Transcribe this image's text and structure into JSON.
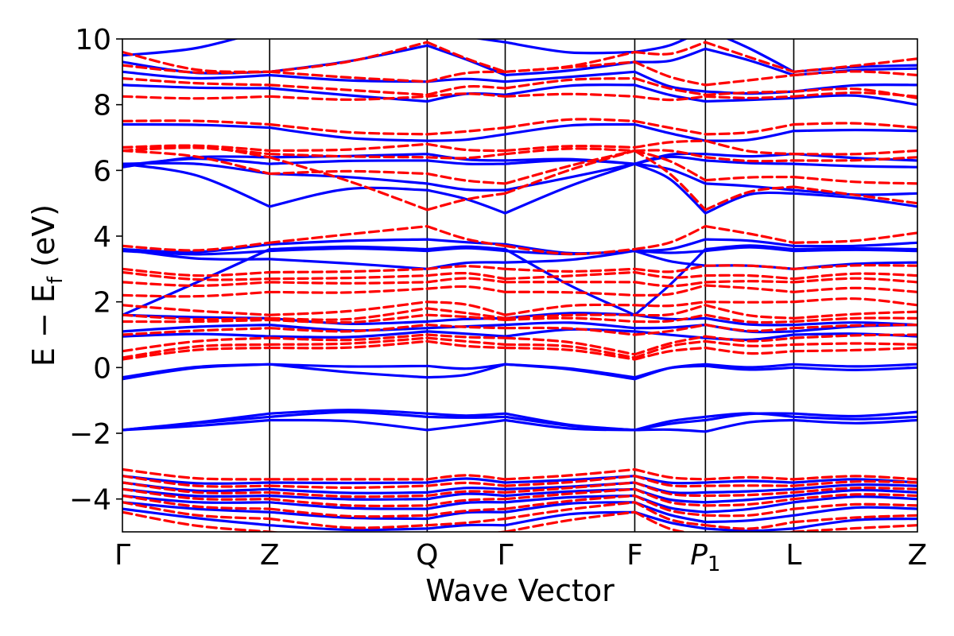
{
  "chart_data": {
    "type": "line",
    "title": "",
    "xlabel": "Wave Vector",
    "ylabel_parts": {
      "main": "E − E",
      "sub": "f",
      "unit": " (eV)"
    },
    "ylim": [
      -5,
      10
    ],
    "yticks": [
      {
        "value": -4,
        "label": "−4"
      },
      {
        "value": -2,
        "label": "−2"
      },
      {
        "value": 0,
        "label": "0"
      },
      {
        "value": 2,
        "label": "2"
      },
      {
        "value": 4,
        "label": "4"
      },
      {
        "value": 6,
        "label": "6"
      },
      {
        "value": 8,
        "label": "8"
      },
      {
        "value": 10,
        "label": "10"
      }
    ],
    "kpoints": [
      {
        "pos": 0.0,
        "label": "Γ"
      },
      {
        "pos": 1.0,
        "label": "Z"
      },
      {
        "pos": 2.07,
        "label": "Q"
      },
      {
        "pos": 2.6,
        "label": "Γ"
      },
      {
        "pos": 3.48,
        "label": "F"
      },
      {
        "pos": 3.96,
        "label": "P",
        "sub": "1"
      },
      {
        "pos": 4.56,
        "label": "L"
      },
      {
        "pos": 5.4,
        "label": "Z"
      }
    ],
    "grid": false,
    "colors": {
      "spin_a": "#0000ff",
      "spin_b": "#ff0000",
      "kline": "#000000"
    },
    "series": [
      {
        "color": "#0000ff",
        "style": "solid",
        "bands": [
          [
            -1.9,
            -1.5,
            -1.5,
            -1.5,
            -1.9,
            -1.5,
            -1.5,
            -1.5,
            -1.4
          ],
          [
            -1.9,
            -1.6,
            -1.9,
            -1.6,
            -1.9,
            -1.95,
            -1.6,
            -1.6,
            -1.6
          ],
          [
            -1.9,
            -1.4,
            -1.4,
            -1.4,
            -1.9,
            -1.6,
            -1.4,
            -1.35,
            -1.35
          ],
          [
            -0.3,
            0.1,
            -0.3,
            0.1,
            -0.3,
            0.05,
            0.0,
            0.0,
            0.0
          ],
          [
            -0.35,
            0.1,
            0.05,
            0.1,
            -0.35,
            0.1,
            0.1,
            0.1,
            0.1
          ],
          [
            0.95,
            0.95,
            1.1,
            0.95,
            1.1,
            0.9,
            1.0,
            0.95,
            1.0
          ],
          [
            1.1,
            1.3,
            1.2,
            1.3,
            1.2,
            1.3,
            1.1,
            1.3,
            1.3
          ],
          [
            1.6,
            1.5,
            1.4,
            1.5,
            1.6,
            1.5,
            1.3,
            1.3,
            1.3
          ],
          [
            1.6,
            3.6,
            3.6,
            3.6,
            1.6,
            3.6,
            3.6,
            3.6,
            3.6
          ],
          [
            3.55,
            3.55,
            3.55,
            3.55,
            3.55,
            3.55,
            3.55,
            3.55,
            3.55
          ],
          [
            3.6,
            3.75,
            3.9,
            3.75,
            3.55,
            3.9,
            3.7,
            3.8,
            3.6
          ],
          [
            3.6,
            3.3,
            3.0,
            3.2,
            3.55,
            3.1,
            3.0,
            3.2,
            3.1
          ],
          [
            6.2,
            4.9,
            5.4,
            4.7,
            6.2,
            4.7,
            5.3,
            4.9,
            5.5
          ],
          [
            6.2,
            5.9,
            5.6,
            5.4,
            6.2,
            5.6,
            5.4,
            5.3,
            5.4
          ],
          [
            6.15,
            6.2,
            6.3,
            6.2,
            6.2,
            6.3,
            6.2,
            6.1,
            6.3
          ],
          [
            6.1,
            6.4,
            6.5,
            6.3,
            6.2,
            6.5,
            6.5,
            6.3,
            6.4
          ],
          [
            7.4,
            7.3,
            6.9,
            7.1,
            7.4,
            6.9,
            7.2,
            7.2,
            7.2
          ],
          [
            8.6,
            8.5,
            8.1,
            8.3,
            8.6,
            8.1,
            8.2,
            8.0,
            8.2
          ],
          [
            9.0,
            8.9,
            8.7,
            8.7,
            9.0,
            8.4,
            8.4,
            8.6,
            8.5
          ],
          [
            9.3,
            9.0,
            9.8,
            8.9,
            9.3,
            9.7,
            8.9,
            9.1,
            8.9
          ],
          [
            9.5,
            10.3,
            10.3,
            9.9,
            9.6,
            10.3,
            9.0,
            9.2,
            9.0
          ],
          [
            -3.3,
            -3.5,
            -3.5,
            -3.5,
            -3.3,
            -3.5,
            -3.5,
            -3.5,
            -3.5
          ],
          [
            -3.5,
            -3.7,
            -3.8,
            -3.7,
            -3.5,
            -3.8,
            -3.7,
            -3.6,
            -3.7
          ],
          [
            -3.7,
            -3.9,
            -4.0,
            -3.9,
            -3.7,
            -4.1,
            -3.9,
            -3.8,
            -3.8
          ],
          [
            -3.9,
            -4.1,
            -4.3,
            -4.1,
            -3.9,
            -4.4,
            -4.1,
            -4.0,
            -4.0
          ],
          [
            -4.1,
            -4.4,
            -4.6,
            -4.4,
            -4.1,
            -4.7,
            -4.5,
            -4.3,
            -4.2
          ],
          [
            -4.3,
            -4.8,
            -4.9,
            -4.8,
            -4.4,
            -4.9,
            -4.9,
            -4.6,
            -4.5
          ]
        ]
      },
      {
        "color": "#ff0000",
        "style": "dashed",
        "bands": [
          [
            0.25,
            0.6,
            0.8,
            0.6,
            0.25,
            0.6,
            0.5,
            0.6,
            0.6
          ],
          [
            0.3,
            0.7,
            0.9,
            0.7,
            0.3,
            0.8,
            0.7,
            0.7,
            0.8
          ],
          [
            0.5,
            0.9,
            1.0,
            0.9,
            0.4,
            0.95,
            0.9,
            1.0,
            1.0
          ],
          [
            1.0,
            1.2,
            1.3,
            1.2,
            1.0,
            1.3,
            1.2,
            1.3,
            1.2
          ],
          [
            1.4,
            1.45,
            1.6,
            1.45,
            1.4,
            1.6,
            1.4,
            1.5,
            1.4
          ],
          [
            1.6,
            1.5,
            1.8,
            1.5,
            1.6,
            1.9,
            1.5,
            1.7,
            1.5
          ],
          [
            1.9,
            1.6,
            2.0,
            1.6,
            1.9,
            2.0,
            2.0,
            1.9,
            2.0
          ],
          [
            2.2,
            2.3,
            2.4,
            2.3,
            2.2,
            2.5,
            2.3,
            2.3,
            2.3
          ],
          [
            2.6,
            2.6,
            2.6,
            2.6,
            2.6,
            2.6,
            2.6,
            2.6,
            2.6
          ],
          [
            2.9,
            2.7,
            2.8,
            2.7,
            2.9,
            2.8,
            2.7,
            2.8,
            2.8
          ],
          [
            3.0,
            2.9,
            3.0,
            3.0,
            3.0,
            3.1,
            3.0,
            3.1,
            3.0
          ],
          [
            3.7,
            3.8,
            4.3,
            3.7,
            3.6,
            4.3,
            3.8,
            4.1,
            3.8
          ],
          [
            6.6,
            6.4,
            4.8,
            5.3,
            6.6,
            4.8,
            5.5,
            5.0,
            5.4
          ],
          [
            6.6,
            5.9,
            5.9,
            5.6,
            6.6,
            5.7,
            5.8,
            5.6,
            5.8
          ],
          [
            6.6,
            6.5,
            6.4,
            6.5,
            6.6,
            6.4,
            6.3,
            6.4,
            6.5
          ],
          [
            6.7,
            6.6,
            6.8,
            6.6,
            6.7,
            6.9,
            6.5,
            6.6,
            6.6
          ],
          [
            7.5,
            7.4,
            7.1,
            7.3,
            7.5,
            7.1,
            7.4,
            7.3,
            7.4
          ],
          [
            8.25,
            8.25,
            8.25,
            8.25,
            8.25,
            8.25,
            8.25,
            8.25,
            8.25
          ],
          [
            8.8,
            8.6,
            8.3,
            8.5,
            8.8,
            8.3,
            8.4,
            8.2,
            8.4
          ],
          [
            9.2,
            9.0,
            8.7,
            9.0,
            9.3,
            8.6,
            8.9,
            8.9,
            8.9
          ],
          [
            9.6,
            9.0,
            9.9,
            9.0,
            9.6,
            9.9,
            9.0,
            9.4,
            9.0
          ],
          [
            -3.1,
            -3.4,
            -3.4,
            -3.4,
            -3.1,
            -3.4,
            -3.4,
            -3.4,
            -3.4
          ],
          [
            -3.3,
            -3.6,
            -3.6,
            -3.6,
            -3.3,
            -3.6,
            -3.6,
            -3.5,
            -3.6
          ],
          [
            -3.5,
            -3.8,
            -3.9,
            -3.8,
            -3.5,
            -3.9,
            -3.8,
            -3.7,
            -3.8
          ],
          [
            -3.7,
            -4.0,
            -4.2,
            -4.0,
            -3.7,
            -4.2,
            -4.0,
            -3.9,
            -4.0
          ],
          [
            -3.9,
            -4.3,
            -4.5,
            -4.3,
            -3.9,
            -4.5,
            -4.3,
            -4.2,
            -4.3
          ],
          [
            -4.1,
            -4.6,
            -4.8,
            -4.6,
            -4.1,
            -4.8,
            -4.7,
            -4.5,
            -4.7
          ],
          [
            -4.4,
            -5.0,
            -5.1,
            -5.0,
            -4.4,
            -5.1,
            -5.0,
            -4.8,
            -5.0
          ]
        ]
      }
    ]
  }
}
